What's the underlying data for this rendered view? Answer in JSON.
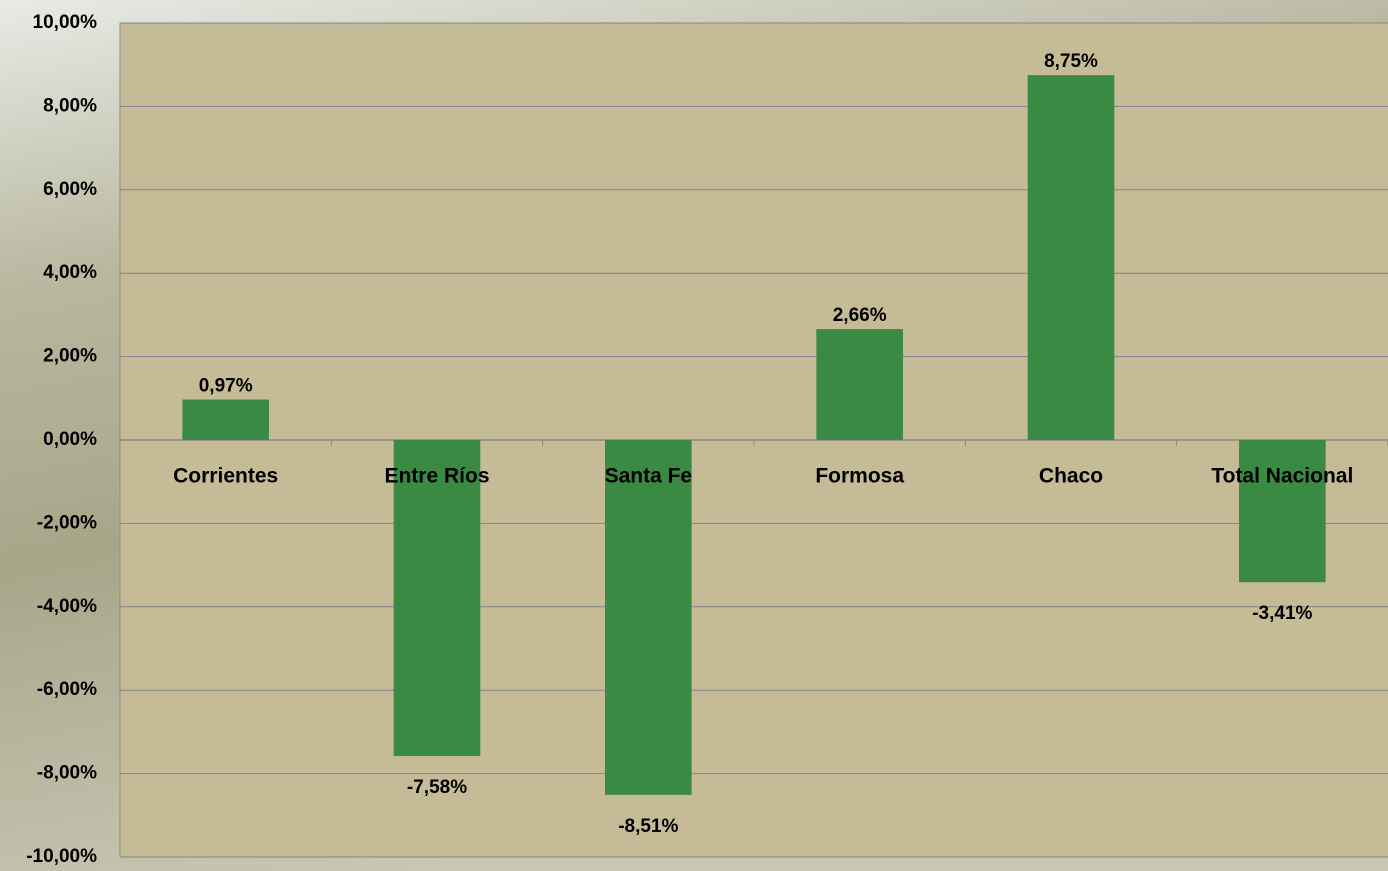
{
  "chart_data": {
    "type": "bar",
    "categories": [
      "Corrientes",
      "Entre Ríos",
      "Santa Fe",
      "Formosa",
      "Chaco",
      "Total Nacional"
    ],
    "values": [
      0.97,
      -7.58,
      -8.51,
      2.66,
      8.75,
      -3.41
    ],
    "value_labels": [
      "0,97%",
      "-7,58%",
      "-8,51%",
      "2,66%",
      "8,75%",
      "-3,41%"
    ],
    "color": "#3b8a44",
    "ylim": [
      -10,
      10
    ],
    "yticks": [
      {
        "value": -10,
        "label": "-10,00%"
      },
      {
        "value": -8,
        "label": "-8,00%"
      },
      {
        "value": -6,
        "label": "-6,00%"
      },
      {
        "value": -4,
        "label": "-4,00%"
      },
      {
        "value": -2,
        "label": "-2,00%"
      },
      {
        "value": 0,
        "label": "0,00%"
      },
      {
        "value": 2,
        "label": "2,00%"
      },
      {
        "value": 4,
        "label": "4,00%"
      },
      {
        "value": 6,
        "label": "6,00%"
      },
      {
        "value": 8,
        "label": "8,00%"
      },
      {
        "value": 10,
        "label": "10,00%"
      }
    ],
    "grid": true
  }
}
